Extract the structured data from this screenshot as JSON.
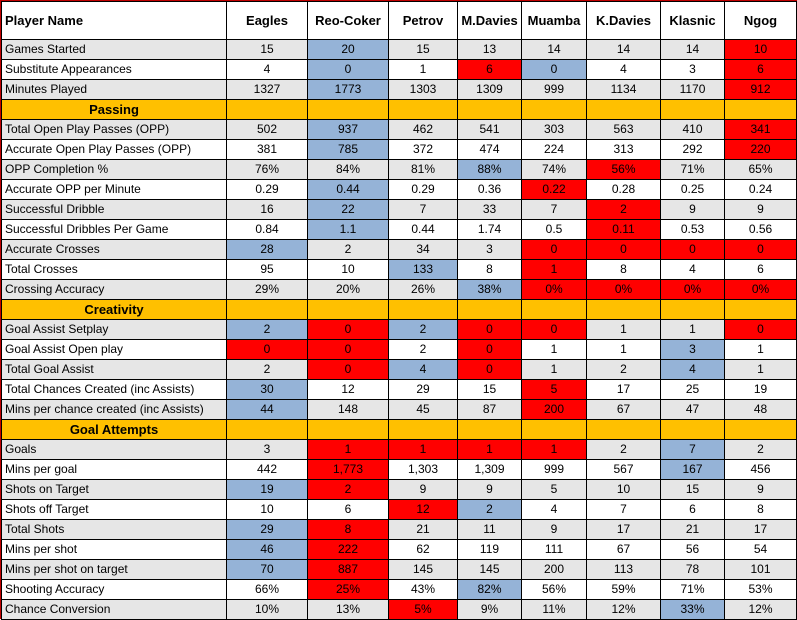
{
  "header": {
    "label": "Player Name",
    "players": [
      "Eagles",
      "Reo-Coker",
      "Petrov",
      "M.Davies",
      "Muamba",
      "K.Davies",
      "Klasnic",
      "Ngog"
    ]
  },
  "colors": {
    "blue": "#95b3d7",
    "red": "#ff0000",
    "section": "#ffc000",
    "grey_row": "#e6e6e6"
  },
  "rows": [
    {
      "label": "Games Started",
      "values": [
        "15",
        "20",
        "15",
        "13",
        "14",
        "14",
        "14",
        "10"
      ],
      "hl": [
        "",
        "b",
        "",
        "",
        "",
        "",
        "",
        "r"
      ]
    },
    {
      "label": "Substitute Appearances",
      "values": [
        "4",
        "0",
        "1",
        "6",
        "0",
        "4",
        "3",
        "6"
      ],
      "hl": [
        "",
        "b",
        "",
        "r",
        "b",
        "",
        "",
        "r"
      ]
    },
    {
      "label": "Minutes Played",
      "values": [
        "1327",
        "1773",
        "1303",
        "1309",
        "999",
        "1134",
        "1170",
        "912"
      ],
      "hl": [
        "",
        "b",
        "",
        "",
        "",
        "",
        "",
        "r"
      ]
    },
    {
      "section": "Passing"
    },
    {
      "label": "Total Open Play Passes (OPP)",
      "values": [
        "502",
        "937",
        "462",
        "541",
        "303",
        "563",
        "410",
        "341"
      ],
      "hl": [
        "",
        "b",
        "",
        "",
        "",
        "",
        "",
        "r"
      ]
    },
    {
      "label": "Accurate Open Play Passes (OPP)",
      "values": [
        "381",
        "785",
        "372",
        "474",
        "224",
        "313",
        "292",
        "220"
      ],
      "hl": [
        "",
        "b",
        "",
        "",
        "",
        "",
        "",
        "r"
      ]
    },
    {
      "label": "OPP Completion %",
      "values": [
        "76%",
        "84%",
        "81%",
        "88%",
        "74%",
        "56%",
        "71%",
        "65%"
      ],
      "hl": [
        "",
        "",
        "",
        "b",
        "",
        "r",
        "",
        ""
      ]
    },
    {
      "label": "Accurate OPP per Minute",
      "values": [
        "0.29",
        "0.44",
        "0.29",
        "0.36",
        "0.22",
        "0.28",
        "0.25",
        "0.24"
      ],
      "hl": [
        "",
        "b",
        "",
        "",
        "r",
        "",
        "",
        ""
      ]
    },
    {
      "label": "Successful Dribble",
      "values": [
        "16",
        "22",
        "7",
        "33",
        "7",
        "2",
        "9",
        "9"
      ],
      "hl": [
        "",
        "b",
        "",
        "",
        "",
        "r",
        "",
        ""
      ]
    },
    {
      "label": "Successful Dribbles Per Game",
      "values": [
        "0.84",
        "1.1",
        "0.44",
        "1.74",
        "0.5",
        "0.11",
        "0.53",
        "0.56"
      ],
      "hl": [
        "",
        "b",
        "",
        "",
        "",
        "r",
        "",
        ""
      ]
    },
    {
      "label": "Accurate Crosses",
      "values": [
        "28",
        "2",
        "34",
        "3",
        "0",
        "0",
        "0",
        "0"
      ],
      "hl": [
        "b",
        "",
        "",
        "",
        "r",
        "r",
        "r",
        "r"
      ]
    },
    {
      "label": "Total Crosses",
      "values": [
        "95",
        "10",
        "133",
        "8",
        "1",
        "8",
        "4",
        "6"
      ],
      "hl": [
        "",
        "",
        "b",
        "",
        "r",
        "",
        "",
        ""
      ]
    },
    {
      "label": "Crossing Accuracy",
      "values": [
        "29%",
        "20%",
        "26%",
        "38%",
        "0%",
        "0%",
        "0%",
        "0%"
      ],
      "hl": [
        "",
        "",
        "",
        "b",
        "r",
        "r",
        "r",
        "r"
      ]
    },
    {
      "section": "Creativity"
    },
    {
      "label": "Goal Assist Setplay",
      "values": [
        "2",
        "0",
        "2",
        "0",
        "0",
        "1",
        "1",
        "0"
      ],
      "hl": [
        "b",
        "r",
        "b",
        "r",
        "r",
        "",
        "",
        "r"
      ]
    },
    {
      "label": "Goal Assist Open play",
      "values": [
        "0",
        "0",
        "2",
        "0",
        "1",
        "1",
        "3",
        "1"
      ],
      "hl": [
        "r",
        "r",
        "",
        "r",
        "",
        "",
        "b",
        ""
      ]
    },
    {
      "label": "Total Goal Assist",
      "values": [
        "2",
        "0",
        "4",
        "0",
        "1",
        "2",
        "4",
        "1"
      ],
      "hl": [
        "",
        "r",
        "b",
        "r",
        "",
        "",
        "b",
        ""
      ]
    },
    {
      "label": "Total Chances Created (inc Assists)",
      "values": [
        "30",
        "12",
        "29",
        "15",
        "5",
        "17",
        "25",
        "19"
      ],
      "hl": [
        "b",
        "",
        "",
        "",
        "r",
        "",
        "",
        ""
      ]
    },
    {
      "label": "Mins per chance created (inc Assists)",
      "values": [
        "44",
        "148",
        "45",
        "87",
        "200",
        "67",
        "47",
        "48"
      ],
      "hl": [
        "b",
        "",
        "",
        "",
        "r",
        "",
        "",
        ""
      ]
    },
    {
      "section": "Goal Attempts"
    },
    {
      "label": "Goals",
      "values": [
        "3",
        "1",
        "1",
        "1",
        "1",
        "2",
        "7",
        "2"
      ],
      "hl": [
        "",
        "r",
        "r",
        "r",
        "r",
        "",
        "b",
        ""
      ]
    },
    {
      "label": "Mins per goal",
      "values": [
        "442",
        "1,773",
        "1,303",
        "1,309",
        "999",
        "567",
        "167",
        "456"
      ],
      "hl": [
        "",
        "r",
        "",
        "",
        "",
        "",
        "b",
        ""
      ]
    },
    {
      "label": "Shots on Target",
      "values": [
        "19",
        "2",
        "9",
        "9",
        "5",
        "10",
        "15",
        "9"
      ],
      "hl": [
        "b",
        "r",
        "",
        "",
        "",
        "",
        "",
        ""
      ]
    },
    {
      "label": "Shots off Target",
      "values": [
        "10",
        "6",
        "12",
        "2",
        "4",
        "7",
        "6",
        "8"
      ],
      "hl": [
        "",
        "",
        "r",
        "b",
        "",
        "",
        "",
        ""
      ]
    },
    {
      "label": "Total Shots",
      "values": [
        "29",
        "8",
        "21",
        "11",
        "9",
        "17",
        "21",
        "17"
      ],
      "hl": [
        "b",
        "r",
        "",
        "",
        "",
        "",
        "",
        ""
      ]
    },
    {
      "label": "Mins per shot",
      "values": [
        "46",
        "222",
        "62",
        "119",
        "111",
        "67",
        "56",
        "54"
      ],
      "hl": [
        "b",
        "r",
        "",
        "",
        "",
        "",
        "",
        ""
      ]
    },
    {
      "label": "Mins per shot on target",
      "values": [
        "70",
        "887",
        "145",
        "145",
        "200",
        "113",
        "78",
        "101"
      ],
      "hl": [
        "b",
        "r",
        "",
        "",
        "",
        "",
        "",
        ""
      ]
    },
    {
      "label": "Shooting Accuracy",
      "values": [
        "66%",
        "25%",
        "43%",
        "82%",
        "56%",
        "59%",
        "71%",
        "53%"
      ],
      "hl": [
        "",
        "r",
        "",
        "b",
        "",
        "",
        "",
        ""
      ]
    },
    {
      "label": "Chance Conversion",
      "values": [
        "10%",
        "13%",
        "5%",
        "9%",
        "11%",
        "12%",
        "33%",
        "12%"
      ],
      "hl": [
        "",
        "",
        "r",
        "",
        "",
        "",
        "b",
        ""
      ]
    }
  ]
}
